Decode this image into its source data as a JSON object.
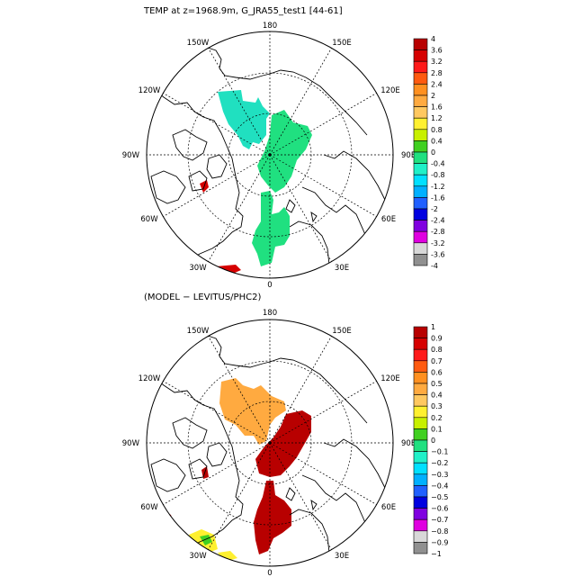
{
  "panels": [
    {
      "title": "TEMP at z=1968.9m, G_JRA55_test1 [44-61]",
      "longitude_labels": [
        "180",
        "150E",
        "120E",
        "90E",
        "60E",
        "30E",
        "0",
        "30W",
        "60W",
        "90W",
        "120W",
        "150W"
      ],
      "colorbar": {
        "labels": [
          "4",
          "3.6",
          "3.2",
          "2.8",
          "2.4",
          "2",
          "1.6",
          "1.2",
          "0.8",
          "0.4",
          "0",
          "-0.4",
          "-0.8",
          "-1.2",
          "-1.6",
          "-2",
          "-2.4",
          "-2.8",
          "-3.2",
          "-3.6",
          "-4"
        ],
        "colors": [
          "#b80000",
          "#d60000",
          "#ff1a1a",
          "#ff5a10",
          "#ff9020",
          "#ffaa40",
          "#ffc860",
          "#fff030",
          "#c8f000",
          "#40d020",
          "#20e080",
          "#20f0c8",
          "#00e0ff",
          "#00b0ff",
          "#2060ff",
          "#0000e0",
          "#8000e0",
          "#e000e0",
          "#d8d8d8",
          "#909090"
        ]
      },
      "field": {
        "regions": [
          {
            "name": "canada-basin",
            "value": -0.2,
            "color": "#20e0c0"
          },
          {
            "name": "eurasian-basin",
            "value": -0.1,
            "color": "#20e080"
          },
          {
            "name": "nordic-seas",
            "value": -0.1,
            "color": "#20e080"
          },
          {
            "name": "labrador-sea",
            "value": 3.4,
            "color": "#d60000"
          },
          {
            "name": "baffin-bay",
            "value": 3.2,
            "color": "#d60000"
          }
        ]
      }
    },
    {
      "title": "(MODEL − LEVITUS/PHC2)",
      "longitude_labels": [
        "180",
        "150E",
        "120E",
        "90E",
        "60E",
        "30E",
        "0",
        "30W",
        "60W",
        "90W",
        "120W",
        "150W"
      ],
      "colorbar": {
        "labels": [
          "1",
          "0.9",
          "0.8",
          "0.7",
          "0.6",
          "0.5",
          "0.4",
          "0.3",
          "0.2",
          "0.1",
          "0",
          "−0.1",
          "−0.2",
          "−0.3",
          "−0.4",
          "−0.5",
          "−0.6",
          "−0.7",
          "−0.8",
          "−0.9",
          "−1"
        ],
        "colors": [
          "#b80000",
          "#d60000",
          "#ff1a1a",
          "#ff5a10",
          "#ff9020",
          "#ffaa40",
          "#ffc860",
          "#fff030",
          "#c8f000",
          "#40d020",
          "#20e080",
          "#20f0c8",
          "#00e0ff",
          "#00b0ff",
          "#2060ff",
          "#0000e0",
          "#8000e0",
          "#e000e0",
          "#d8d8d8",
          "#909090"
        ]
      },
      "field": {
        "regions": [
          {
            "name": "canada-basin",
            "value": 0.55,
            "color": "#ffaa40"
          },
          {
            "name": "eurasian-basin",
            "value": 0.95,
            "color": "#b80000"
          },
          {
            "name": "nordic-seas",
            "value": 0.95,
            "color": "#b80000"
          },
          {
            "name": "labrador-sea",
            "value": 0.25,
            "color": "#fff030"
          },
          {
            "name": "baffin-bay",
            "value": 0.95,
            "color": "#b80000"
          }
        ]
      }
    }
  ]
}
